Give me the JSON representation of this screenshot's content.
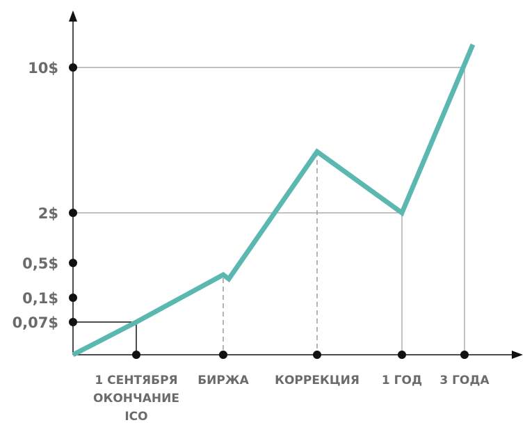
{
  "chart_data": {
    "type": "line",
    "x_categories": [
      {
        "lines": [
          "1 СЕНТЯБРЯ",
          "ОКОНЧАНИЕ",
          "ICO"
        ]
      },
      {
        "lines": [
          "БИРЖА"
        ]
      },
      {
        "lines": [
          "КОРРЕКЦИЯ"
        ]
      },
      {
        "lines": [
          "1 ГОД"
        ]
      },
      {
        "lines": [
          "3 ГОДА"
        ]
      }
    ],
    "y_ticks": [
      {
        "label": "0,07$",
        "value": 0.07
      },
      {
        "label": "0,1$",
        "value": 0.1
      },
      {
        "label": "0,5$",
        "value": 0.5
      },
      {
        "label": "2$",
        "value": 2
      },
      {
        "label": "10$",
        "value": 10
      }
    ],
    "series": [
      {
        "color": "#5bb8b1",
        "points": [
          {
            "x": "origin",
            "y": 0.05
          },
          {
            "x": "1 СЕНТЯБРЯ",
            "y": 0.07
          },
          {
            "x": "БИРЖА",
            "y": 0.3
          },
          {
            "x": "КОРРЕКЦИЯ",
            "y": 4
          },
          {
            "x": "1 ГОД",
            "y": 2
          },
          {
            "x": "3 ГОДА",
            "y": 10
          }
        ]
      }
    ],
    "y_scale": "nonlinear",
    "grid": false
  },
  "colors": {
    "line": "#5bb8b1",
    "axis": "#111111",
    "guide": "#9a9a9a",
    "label": "#6b6b6b"
  }
}
